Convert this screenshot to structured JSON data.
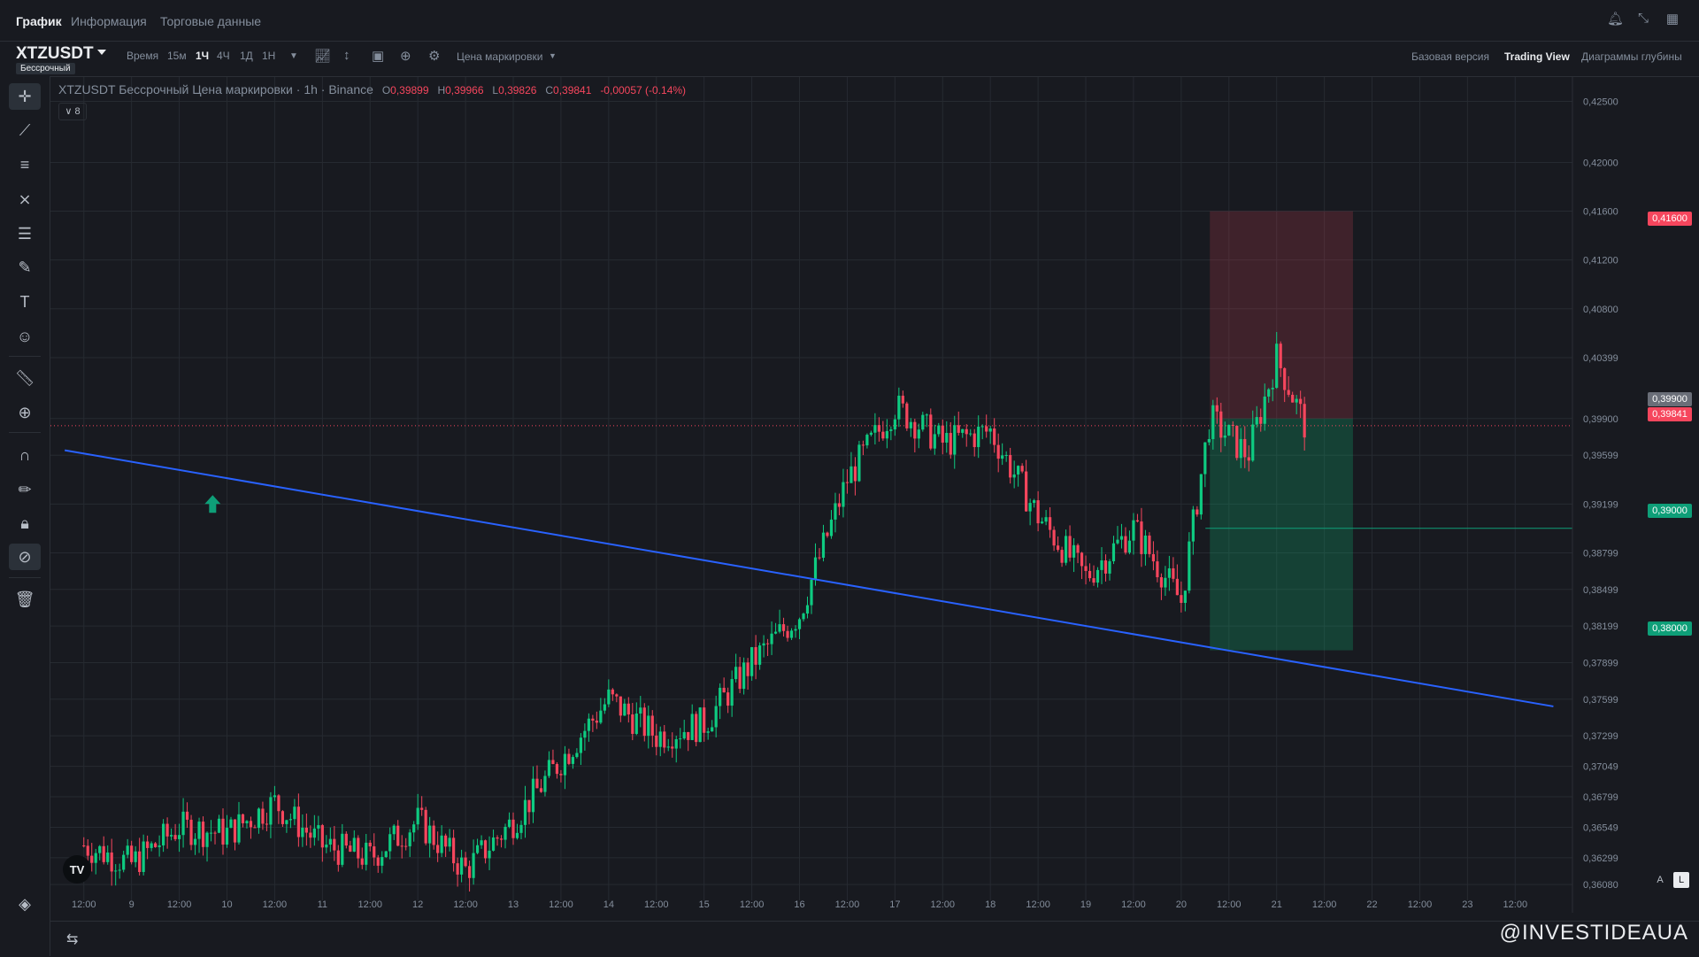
{
  "top_tabs": [
    "График",
    "Информация",
    "Торговые данные"
  ],
  "symbol": "XTZUSDT",
  "badge": "Бессрочный",
  "timeframes": [
    "Время",
    "15м",
    "1Ч",
    "4Ч",
    "1Д",
    "1Н"
  ],
  "price_type_label": "Цена маркировки",
  "views": [
    "Базовая версия",
    "Trading View",
    "Диаграммы глубины"
  ],
  "legend": {
    "title": "XTZUSDT Бессрочный Цена маркировки · 1h · Binance",
    "open_label": "O",
    "open": "0,39899",
    "high_label": "H",
    "high": "0,39966",
    "low_label": "L",
    "low": "0,39826",
    "close_label": "C",
    "close": "0,39841",
    "change": "-0,00057 (-0.14%)"
  },
  "indicators_count": "8",
  "price_labels": {
    "stop": "0,41600",
    "entry": "0,39900",
    "current": "0,39841",
    "mid": "0,39000",
    "target": "0,38000"
  },
  "scale_buttons": [
    "A",
    "L"
  ],
  "watermark": "@INVESTIDEAUA",
  "colors": {
    "up": "#0ecb81",
    "down": "#f6465d",
    "trendline": "#2962ff",
    "target_zone": "#0ecb81",
    "stop_zone": "#f6465d"
  },
  "chart_data": {
    "type": "candlestick",
    "title": "XTZUSDT Бессрочный Цена маркировки · 1h · Binance",
    "y_ticks": [
      "0,42500",
      "0,42000",
      "0,41600",
      "0,41200",
      "0,40800",
      "0,40399",
      "0,39900",
      "0,39599",
      "0,39199",
      "0,38799",
      "0,38499",
      "0,38199",
      "0,37899",
      "0,37599",
      "0,37299",
      "0,37049",
      "0,36799",
      "0,36549",
      "0,36299",
      "0,36080"
    ],
    "x_ticks": [
      "12:00",
      "9",
      "12:00",
      "10",
      "12:00",
      "11",
      "12:00",
      "12",
      "12:00",
      "13",
      "12:00",
      "14",
      "12:00",
      "15",
      "12:00",
      "16",
      "12:00",
      "17",
      "12:00",
      "18",
      "12:00",
      "19",
      "12:00",
      "20",
      "12:00",
      "21",
      "12:00",
      "22",
      "12:00",
      "23",
      "12:00"
    ],
    "ylim": [
      0.3595,
      0.427
    ],
    "price_path": [
      {
        "day": 8.5,
        "price": 0.364
      },
      {
        "day": 9.0,
        "price": 0.3625
      },
      {
        "day": 9.5,
        "price": 0.3655
      },
      {
        "day": 10.0,
        "price": 0.365
      },
      {
        "day": 10.5,
        "price": 0.3675
      },
      {
        "day": 11.0,
        "price": 0.364
      },
      {
        "day": 11.5,
        "price": 0.363
      },
      {
        "day": 12.0,
        "price": 0.366
      },
      {
        "day": 12.5,
        "price": 0.362
      },
      {
        "day": 13.0,
        "price": 0.366
      },
      {
        "day": 13.5,
        "price": 0.371
      },
      {
        "day": 14.0,
        "price": 0.376
      },
      {
        "day": 14.5,
        "price": 0.373
      },
      {
        "day": 15.0,
        "price": 0.374
      },
      {
        "day": 15.5,
        "price": 0.379
      },
      {
        "day": 16.0,
        "price": 0.383
      },
      {
        "day": 16.5,
        "price": 0.394
      },
      {
        "day": 17.0,
        "price": 0.4
      },
      {
        "day": 17.5,
        "price": 0.397
      },
      {
        "day": 18.0,
        "price": 0.398
      },
      {
        "day": 18.5,
        "price": 0.391
      },
      {
        "day": 19.0,
        "price": 0.386
      },
      {
        "day": 19.5,
        "price": 0.39
      },
      {
        "day": 20.0,
        "price": 0.384
      },
      {
        "day": 20.3,
        "price": 0.399
      },
      {
        "day": 20.7,
        "price": 0.396
      },
      {
        "day": 21.0,
        "price": 0.404
      },
      {
        "day": 21.3,
        "price": 0.3984
      }
    ],
    "trendline": [
      {
        "day": 8.3,
        "price": 0.3964
      },
      {
        "day": 23.9,
        "price": 0.3754
      }
    ],
    "position": {
      "type": "long",
      "entry": 0.399,
      "stop": 0.416,
      "target": 0.38,
      "start_day": 20.3,
      "end_day": 21.8
    }
  }
}
